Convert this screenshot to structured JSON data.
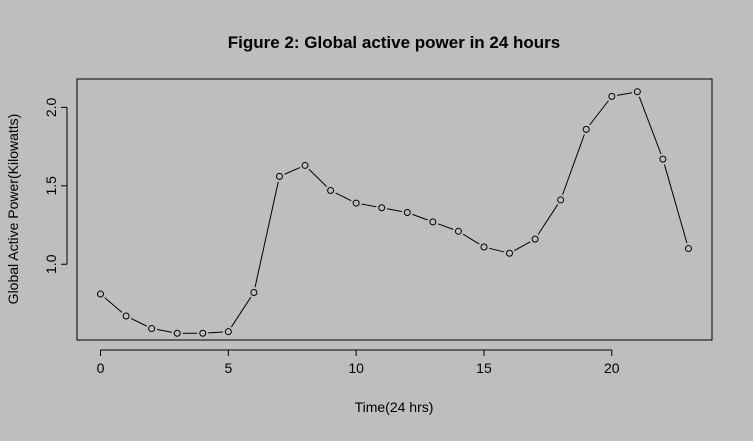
{
  "chart_data": {
    "type": "line",
    "title": "Figure 2: Global active power in 24 hours",
    "xlabel": "Time(24 hrs)",
    "ylabel": "Global Active Power(Kilowatts)",
    "x_ticks": [
      "0",
      "5",
      "10",
      "15",
      "20"
    ],
    "y_ticks": [
      "1.0",
      "1.5",
      "2.0"
    ],
    "xlim": [
      -0.92,
      23.92
    ],
    "ylim": [
      0.517,
      2.181
    ],
    "grid": false,
    "legend": "none",
    "markers": "open-circle",
    "series": [
      {
        "x": [
          0,
          1,
          2,
          3,
          4,
          5,
          6,
          7,
          8,
          9,
          10,
          11,
          12,
          13,
          14,
          15,
          16,
          17,
          18,
          19,
          20,
          21,
          22,
          23
        ],
        "values": [
          0.81,
          0.67,
          0.59,
          0.56,
          0.56,
          0.57,
          0.82,
          1.56,
          1.63,
          1.47,
          1.39,
          1.36,
          1.33,
          1.27,
          1.21,
          1.11,
          1.07,
          1.16,
          1.41,
          1.86,
          2.07,
          2.1,
          1.67,
          1.1
        ]
      }
    ]
  }
}
